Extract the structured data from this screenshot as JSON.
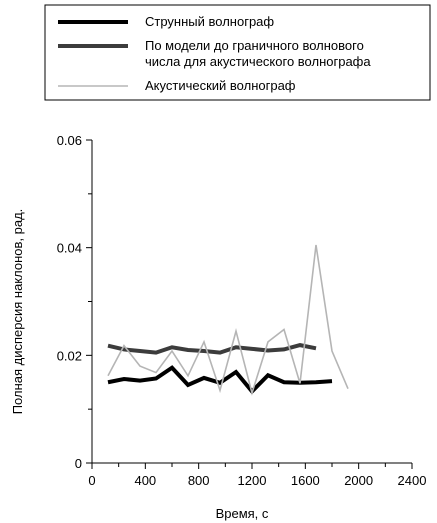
{
  "chart_data": {
    "type": "line",
    "title": "",
    "xlabel": "Время, с",
    "ylabel": "Полная дисперсия наклонов, рад.",
    "xlim": [
      0,
      2400
    ],
    "ylim": [
      0,
      0.06
    ],
    "x_ticks": [
      0,
      400,
      800,
      1200,
      1600,
      2000,
      2400
    ],
    "y_ticks": [
      0,
      0.02,
      0.04,
      0.06
    ],
    "x_tick_labels": [
      "0",
      "400",
      "800",
      "1200",
      "1600",
      "2000",
      "2400"
    ],
    "y_tick_labels": [
      "0",
      "0.02",
      "0.04",
      "0.06"
    ],
    "grid": false,
    "legend_position": "top",
    "series": [
      {
        "name": "Струнный волнограф",
        "color": "#000000",
        "width": 4,
        "points": [
          [
            120,
            0.015
          ],
          [
            240,
            0.0156
          ],
          [
            360,
            0.0153
          ],
          [
            480,
            0.0157
          ],
          [
            600,
            0.0177
          ],
          [
            720,
            0.0145
          ],
          [
            840,
            0.0158
          ],
          [
            960,
            0.0149
          ],
          [
            1080,
            0.0169
          ],
          [
            1200,
            0.0133
          ],
          [
            1320,
            0.0163
          ],
          [
            1440,
            0.015
          ],
          [
            1560,
            0.0149
          ],
          [
            1680,
            0.015
          ],
          [
            1800,
            0.0152
          ]
        ]
      },
      {
        "name": "По модели до граничного волнового числа для акустического волнографа",
        "color": "#3c3c3c",
        "width": 4,
        "points": [
          [
            120,
            0.0218
          ],
          [
            240,
            0.0211
          ],
          [
            360,
            0.0208
          ],
          [
            480,
            0.0205
          ],
          [
            600,
            0.0215
          ],
          [
            720,
            0.021
          ],
          [
            840,
            0.0208
          ],
          [
            960,
            0.0205
          ],
          [
            1080,
            0.0215
          ],
          [
            1200,
            0.0212
          ],
          [
            1320,
            0.0209
          ],
          [
            1440,
            0.0211
          ],
          [
            1560,
            0.0219
          ],
          [
            1680,
            0.0213
          ]
        ]
      },
      {
        "name": "Акустический волнограф",
        "color": "#b5b5b5",
        "width": 1.6,
        "points": [
          [
            120,
            0.0162
          ],
          [
            240,
            0.0218
          ],
          [
            360,
            0.018
          ],
          [
            480,
            0.0168
          ],
          [
            600,
            0.0208
          ],
          [
            720,
            0.0162
          ],
          [
            840,
            0.0225
          ],
          [
            960,
            0.0135
          ],
          [
            1080,
            0.0245
          ],
          [
            1200,
            0.013
          ],
          [
            1320,
            0.0225
          ],
          [
            1440,
            0.0248
          ],
          [
            1560,
            0.0148
          ],
          [
            1680,
            0.0405
          ],
          [
            1800,
            0.0208
          ],
          [
            1920,
            0.0138
          ]
        ]
      }
    ]
  }
}
